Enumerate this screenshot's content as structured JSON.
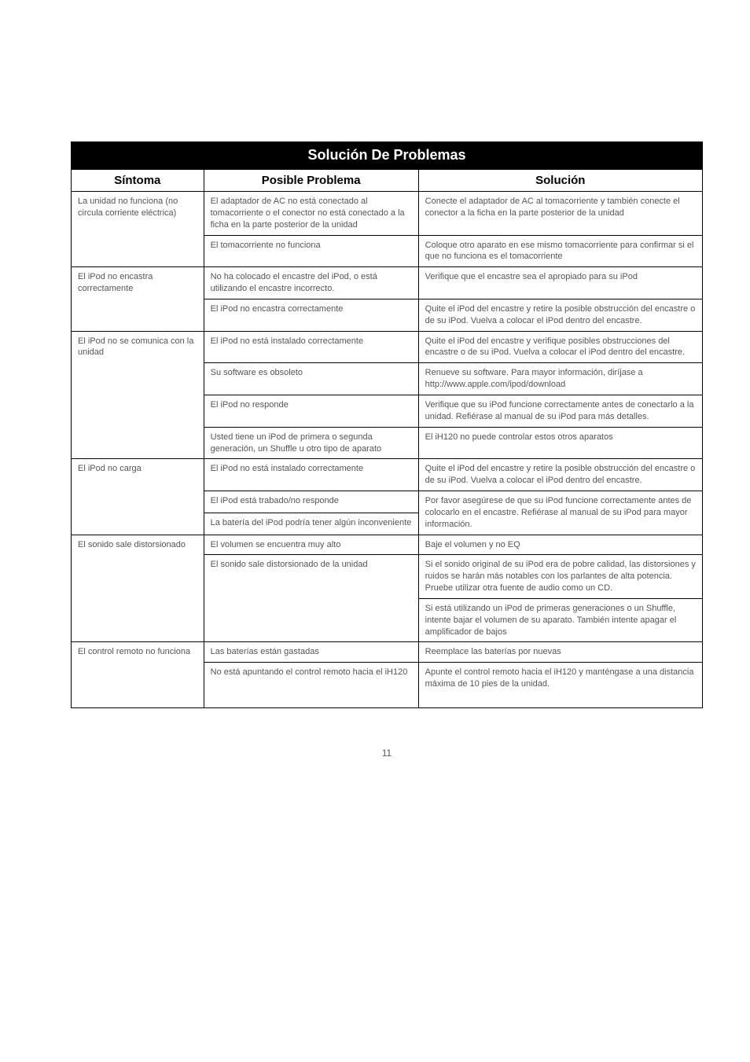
{
  "title": "Solución De Problemas",
  "headers": {
    "sintoma": "Síntoma",
    "problema": "Posible Problema",
    "solucion": "Solución"
  },
  "page_number": "11",
  "rows": [
    {
      "sintoma": "La unidad no funciona (no circula corriente eléctrica)",
      "sintoma_rowspan": 2,
      "problema": "El adaptador de AC no está conectado al tomacorriente o el conector no está conectado a la ficha en la parte posterior de la unidad",
      "solucion": "Conecte el adaptador de AC  al tomacorriente y también conecte el conector a la ficha en la parte posterior de la unidad"
    },
    {
      "problema": "El tomacorriente no funciona",
      "solucion": "Coloque otro aparato en ese mismo tomacorriente para confirmar si el que no funciona es el tomacorriente"
    },
    {
      "sintoma": "El iPod no encastra correctamente",
      "sintoma_rowspan": 2,
      "problema": "No ha colocado el encastre del iPod, o está utilizando el encastre incorrecto.",
      "solucion": "Verifique que el encastre sea el apropiado para su iPod"
    },
    {
      "problema": "El iPod no encastra correctamente",
      "solucion": "Quite el iPod del encastre y retire la posible obstrucción del encastre o de su iPod. Vuelva a colocar el iPod dentro del encastre."
    },
    {
      "sintoma": "El iPod no se comunica con la unidad",
      "sintoma_rowspan": 4,
      "problema": "El iPod no está instalado correctamente",
      "solucion": "Quite el iPod del encastre y verifique posibles obstrucciones del encastre o de su iPod. Vuelva a colocar el iPod dentro del encastre."
    },
    {
      "problema": "Su software es obsoleto",
      "solucion": "Renueve su software. Para mayor información, diríjase a http://www.apple.com/ipod/download"
    },
    {
      "problema": "El iPod no responde",
      "solucion": "Verifique que su iPod funcione correctamente antes de conectarlo a la unidad. Refiérase al manual de su iPod para más detalles."
    },
    {
      "problema": "Usted tiene un iPod de primera o segunda generación, un Shuffle u otro tipo de aparato",
      "solucion": "El iH120 no puede controlar estos otros aparatos"
    },
    {
      "sintoma": "El iPod no carga",
      "sintoma_rowspan": 3,
      "problema": "El iPod no está instalado correctamente",
      "solucion": "Quite el iPod del encastre y retire la posible obstrucción del encastre o de su iPod. Vuelva a colocar el iPod dentro del encastre."
    },
    {
      "problema": "El iPod está trabado/no responde",
      "solucion": "Por favor asegúrese de que su iPod funcione correctamente antes de colocarlo en el encastre. Refiérase al manual de su iPod para mayor información.",
      "solucion_rowspan": 2
    },
    {
      "problema": "La batería del iPod podría tener algún inconveniente"
    },
    {
      "sintoma": "El sonido sale distorsionado",
      "sintoma_rowspan": 3,
      "problema": "El volumen se encuentra muy alto",
      "solucion": "Baje el volumen y no EQ"
    },
    {
      "problema": "El sonido sale distorsionado de la unidad",
      "problema_rowspan": 2,
      "solucion": "Si el sonido original de su iPod era de pobre calidad, las distorsiones y ruidos se harán más notables con los parlantes de alta potencia. Pruebe utilizar otra fuente de audio como un CD."
    },
    {
      "solucion": "Si está utilizando un iPod de primeras generaciones o un Shuffle, intente bajar el volumen de su aparato. También intente apagar el amplificador de bajos"
    },
    {
      "sintoma": "El control remoto no funciona",
      "sintoma_rowspan": 2,
      "problema": "Las baterías están gastadas",
      "solucion": "Reemplace las baterías por nuevas"
    },
    {
      "problema": "No está apuntando el control remoto hacia el iH120",
      "solucion": "Apunte el control remoto hacia el iH120 y manténgase a una distancia máxima de 10 pies de la unidad.",
      "extra_pad": true
    }
  ]
}
